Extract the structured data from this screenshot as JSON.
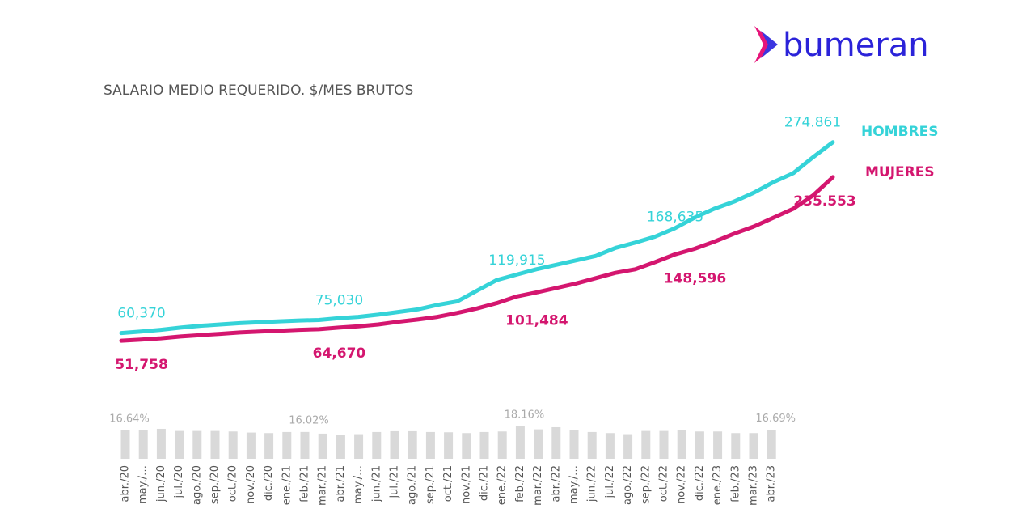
{
  "brand": "bumeran",
  "chart_data": [
    {
      "type": "line",
      "title": "SALARIO MEDIO REQUERIDO. $/MES BRUTOS",
      "ylim": [
        0,
        300000
      ],
      "series": [
        {
          "name": "HOMBRES",
          "color": "#35d3d8",
          "values": [
            60370,
            62000,
            64000,
            66500,
            68500,
            70000,
            71500,
            72500,
            73500,
            74500,
            75030,
            77000,
            78500,
            81000,
            84000,
            87000,
            92000,
            96000,
            108000,
            119915,
            126000,
            132000,
            137000,
            142000,
            147000,
            156000,
            162000,
            168635,
            178000,
            190000,
            200000,
            208000,
            218000,
            230000,
            240000,
            258000,
            274861
          ],
          "value_labels": [
            "60,370",
            null,
            null,
            null,
            null,
            null,
            null,
            null,
            null,
            null,
            "75,030",
            null,
            null,
            null,
            null,
            null,
            null,
            null,
            null,
            "119,915",
            null,
            null,
            null,
            null,
            null,
            null,
            null,
            "168,635",
            null,
            null,
            null,
            null,
            null,
            null,
            null,
            null,
            "274.861"
          ]
        },
        {
          "name": "MUJERES",
          "color": "#d4166f",
          "values": [
            51758,
            53000,
            54500,
            56500,
            58000,
            59500,
            61000,
            62000,
            63000,
            64000,
            64670,
            66500,
            68000,
            70000,
            73000,
            75500,
            78500,
            83000,
            88000,
            94000,
            101484,
            106000,
            111000,
            116000,
            122000,
            128000,
            132000,
            140000,
            148596,
            155000,
            163000,
            172000,
            180000,
            190000,
            200000,
            215000,
            235553
          ],
          "value_labels": [
            "51,758",
            null,
            null,
            null,
            null,
            null,
            null,
            null,
            null,
            null,
            "64,670",
            null,
            null,
            null,
            null,
            null,
            null,
            null,
            null,
            null,
            "101,484",
            null,
            null,
            null,
            null,
            null,
            null,
            null,
            "148,596",
            null,
            null,
            null,
            null,
            null,
            null,
            null,
            "235.553"
          ]
        }
      ]
    },
    {
      "type": "bar",
      "color": "#d9d9d9",
      "ylim": [
        6,
        19
      ],
      "categories": [
        "abr./20",
        "may./…",
        "jun./20",
        "jul./20",
        "ago./20",
        "sep./20",
        "oct./20",
        "nov./20",
        "dic./20",
        "ene./21",
        "feb./21",
        "mar./21",
        "abr./21",
        "may./…",
        "jun./21",
        "jul./21",
        "ago./21",
        "sep./21",
        "oct./21",
        "nov./21",
        "dic./21",
        "ene./22",
        "feb./22",
        "mar./22",
        "abr./22",
        "may./…",
        "jun./22",
        "jul./22",
        "ago./22",
        "sep./22",
        "oct./22",
        "nov./22",
        "dic./22",
        "ene./23",
        "feb./23",
        "mar./23",
        "abr./23"
      ],
      "values": [
        16.64,
        16.8,
        17.2,
        16.4,
        16.4,
        16.4,
        16.2,
        15.8,
        15.6,
        16.0,
        16.02,
        15.4,
        15.0,
        15.2,
        16.0,
        16.3,
        16.3,
        16.0,
        15.9,
        15.6,
        16.0,
        16.2,
        18.16,
        17.0,
        17.8,
        16.6,
        16.0,
        15.6,
        15.2,
        16.4,
        16.4,
        16.6,
        16.2,
        16.2,
        15.6,
        15.6,
        16.69
      ],
      "value_labels": [
        "16.64%",
        null,
        null,
        null,
        null,
        null,
        null,
        null,
        null,
        null,
        "16.02%",
        null,
        null,
        null,
        null,
        null,
        null,
        null,
        null,
        null,
        null,
        null,
        "18.16%",
        null,
        null,
        null,
        null,
        null,
        null,
        null,
        null,
        null,
        null,
        null,
        null,
        null,
        "16.69%"
      ]
    }
  ]
}
